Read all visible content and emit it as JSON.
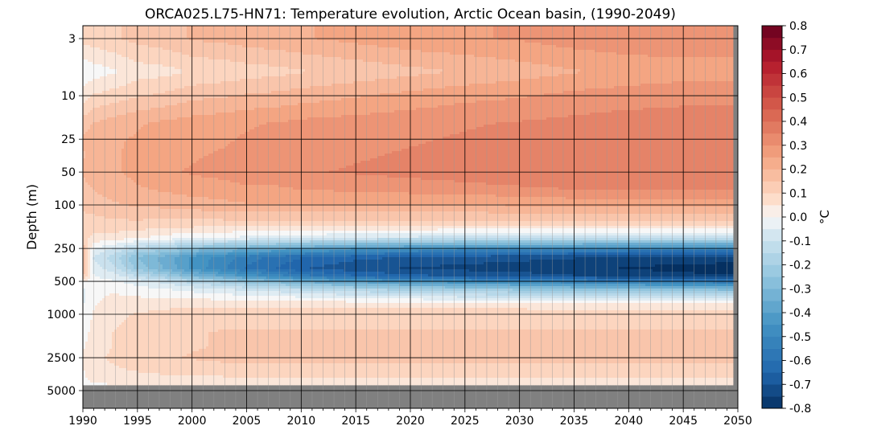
{
  "chart_data": {
    "type": "heatmap",
    "title": "ORCA025.L75-HN71: Temperature evolution, Arctic Ocean basin, (1990-2049)",
    "ylabel": "Depth (m)",
    "xlabel": "",
    "x_range": [
      1990,
      2050
    ],
    "x_ticks": [
      "1990",
      "1995",
      "2000",
      "2005",
      "2010",
      "2015",
      "2020",
      "2025",
      "2030",
      "2035",
      "2040",
      "2045",
      "2050"
    ],
    "x_tick_values": [
      1990,
      1995,
      2000,
      2005,
      2010,
      2015,
      2020,
      2025,
      2030,
      2035,
      2040,
      2045,
      2050
    ],
    "y_scale": "log (depth increasing downward)",
    "y_ticks": [
      "3",
      "10",
      "25",
      "50",
      "100",
      "250",
      "500",
      "1000",
      "2500",
      "5000"
    ],
    "y_tick_values": [
      3,
      10,
      25,
      50,
      100,
      250,
      500,
      1000,
      2500,
      5000
    ],
    "grid": true,
    "colorbar": {
      "label": "°C",
      "range": [
        -0.8,
        0.8
      ],
      "colormap": "RdBu_r",
      "ticks": [
        "0.8",
        "0.7",
        "0.6",
        "0.5",
        "0.4",
        "0.3",
        "0.2",
        "0.1",
        "0.0",
        "-0.1",
        "-0.2",
        "-0.3",
        "-0.4",
        "-0.5",
        "-0.6",
        "-0.7",
        "-0.8"
      ],
      "tick_values": [
        0.8,
        0.7,
        0.6,
        0.5,
        0.4,
        0.3,
        0.2,
        0.1,
        0.0,
        -0.1,
        -0.2,
        -0.3,
        -0.4,
        -0.5,
        -0.6,
        -0.7,
        -0.8
      ]
    },
    "fields": {
      "x_years": [
        1990,
        1991,
        1993,
        1995,
        1998,
        2000,
        2003,
        2005,
        2008,
        2010,
        2015,
        2020,
        2025,
        2030,
        2035,
        2040,
        2045,
        2050
      ],
      "depths": [
        3,
        6,
        10,
        18,
        25,
        35,
        50,
        70,
        100,
        150,
        200,
        250,
        300,
        380,
        450,
        500,
        600,
        800,
        1000,
        1500,
        2000,
        2500,
        3500,
        4500
      ],
      "anomaly_c": [
        [
          0.1,
          -0.02,
          0.05,
          0.15,
          0.18,
          0.17,
          0.18,
          0.16,
          0.14,
          0.1,
          0.09,
          0.16,
          0.16,
          0.16,
          0.14,
          0.02,
          -0.04,
          -0.03,
          -0.02,
          0.0,
          0.02,
          0.03,
          0.02,
          0.02
        ],
        [
          0.1,
          0.0,
          0.08,
          0.18,
          0.2,
          0.2,
          0.2,
          0.18,
          0.15,
          0.1,
          0.06,
          -0.02,
          -0.08,
          -0.05,
          -0.02,
          -0.01,
          0.02,
          0.02,
          0.03,
          0.05,
          0.05,
          0.06,
          0.04,
          0.02
        ],
        [
          0.12,
          0.02,
          0.1,
          0.2,
          0.22,
          0.22,
          0.22,
          0.2,
          0.17,
          0.11,
          0.05,
          -0.08,
          -0.16,
          -0.12,
          -0.05,
          -0.02,
          0.02,
          0.04,
          0.06,
          0.08,
          0.08,
          0.09,
          0.06,
          0.02
        ],
        [
          0.14,
          0.05,
          0.12,
          0.22,
          0.23,
          0.24,
          0.24,
          0.22,
          0.18,
          0.11,
          0.03,
          -0.15,
          -0.28,
          -0.24,
          -0.12,
          -0.05,
          0.0,
          0.05,
          0.08,
          0.1,
          0.1,
          0.11,
          0.07,
          0.03
        ],
        [
          0.16,
          0.06,
          0.14,
          0.24,
          0.25,
          0.26,
          0.27,
          0.24,
          0.19,
          0.1,
          0.0,
          -0.2,
          -0.36,
          -0.35,
          -0.22,
          -0.1,
          -0.02,
          0.06,
          0.09,
          0.11,
          0.11,
          0.12,
          0.08,
          0.03
        ],
        [
          0.18,
          0.08,
          0.16,
          0.25,
          0.26,
          0.27,
          0.28,
          0.25,
          0.2,
          0.1,
          -0.02,
          -0.26,
          -0.44,
          -0.44,
          -0.3,
          -0.15,
          -0.04,
          0.06,
          0.1,
          0.12,
          0.12,
          0.13,
          0.08,
          0.03
        ],
        [
          0.19,
          0.09,
          0.17,
          0.26,
          0.27,
          0.28,
          0.29,
          0.26,
          0.21,
          0.1,
          -0.03,
          -0.3,
          -0.5,
          -0.52,
          -0.38,
          -0.2,
          -0.06,
          0.06,
          0.11,
          0.13,
          0.13,
          0.14,
          0.09,
          0.03
        ],
        [
          0.2,
          0.1,
          0.18,
          0.27,
          0.28,
          0.29,
          0.3,
          0.27,
          0.22,
          0.1,
          -0.04,
          -0.33,
          -0.55,
          -0.58,
          -0.44,
          -0.25,
          -0.08,
          0.06,
          0.11,
          0.13,
          0.13,
          0.14,
          0.09,
          0.03
        ],
        [
          0.21,
          0.11,
          0.19,
          0.28,
          0.29,
          0.3,
          0.31,
          0.27,
          0.22,
          0.1,
          -0.05,
          -0.36,
          -0.6,
          -0.63,
          -0.5,
          -0.3,
          -0.1,
          0.06,
          0.11,
          0.13,
          0.13,
          0.14,
          0.09,
          0.03
        ],
        [
          0.22,
          0.12,
          0.2,
          0.29,
          0.3,
          0.31,
          0.32,
          0.28,
          0.22,
          0.1,
          -0.06,
          -0.38,
          -0.62,
          -0.67,
          -0.55,
          -0.34,
          -0.12,
          0.06,
          0.11,
          0.13,
          0.13,
          0.14,
          0.09,
          0.03
        ],
        [
          0.24,
          0.14,
          0.22,
          0.3,
          0.31,
          0.32,
          0.33,
          0.29,
          0.22,
          0.1,
          -0.08,
          -0.42,
          -0.66,
          -0.71,
          -0.62,
          -0.4,
          -0.15,
          0.05,
          0.11,
          0.13,
          0.13,
          0.14,
          0.09,
          0.03
        ],
        [
          0.26,
          0.16,
          0.24,
          0.31,
          0.32,
          0.33,
          0.34,
          0.3,
          0.22,
          0.1,
          -0.09,
          -0.45,
          -0.68,
          -0.73,
          -0.66,
          -0.44,
          -0.18,
          0.05,
          0.11,
          0.13,
          0.13,
          0.14,
          0.09,
          0.03
        ],
        [
          0.27,
          0.18,
          0.26,
          0.32,
          0.33,
          0.34,
          0.35,
          0.31,
          0.22,
          0.1,
          -0.1,
          -0.47,
          -0.7,
          -0.74,
          -0.68,
          -0.47,
          -0.2,
          0.04,
          0.11,
          0.13,
          0.13,
          0.14,
          0.09,
          0.03
        ],
        [
          0.28,
          0.2,
          0.27,
          0.33,
          0.34,
          0.35,
          0.36,
          0.32,
          0.23,
          0.1,
          -0.1,
          -0.48,
          -0.71,
          -0.75,
          -0.7,
          -0.49,
          -0.22,
          0.04,
          0.11,
          0.13,
          0.13,
          0.14,
          0.09,
          0.03
        ],
        [
          0.3,
          0.22,
          0.29,
          0.34,
          0.36,
          0.36,
          0.37,
          0.33,
          0.24,
          0.1,
          -0.1,
          -0.49,
          -0.72,
          -0.76,
          -0.72,
          -0.52,
          -0.24,
          0.03,
          0.11,
          0.13,
          0.13,
          0.14,
          0.09,
          0.03
        ],
        [
          0.31,
          0.24,
          0.3,
          0.35,
          0.37,
          0.37,
          0.37,
          0.33,
          0.24,
          0.1,
          -0.11,
          -0.5,
          -0.74,
          -0.78,
          -0.74,
          -0.54,
          -0.25,
          0.03,
          0.11,
          0.13,
          0.13,
          0.14,
          0.09,
          0.03
        ],
        [
          0.31,
          0.25,
          0.31,
          0.35,
          0.37,
          0.37,
          0.37,
          0.33,
          0.24,
          0.1,
          -0.11,
          -0.5,
          -0.75,
          -0.79,
          -0.76,
          -0.56,
          -0.26,
          0.03,
          0.11,
          0.13,
          0.13,
          0.14,
          0.09,
          0.03
        ],
        [
          0.31,
          0.25,
          0.31,
          0.35,
          0.37,
          0.37,
          0.37,
          0.33,
          0.24,
          0.1,
          -0.11,
          -0.5,
          -0.75,
          -0.8,
          -0.77,
          -0.57,
          -0.27,
          0.03,
          0.11,
          0.13,
          0.13,
          0.14,
          0.09,
          0.03
        ]
      ]
    }
  }
}
